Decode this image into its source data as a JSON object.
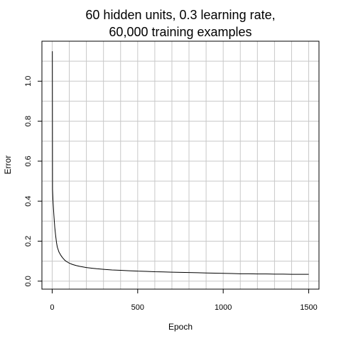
{
  "chart_data": {
    "type": "line",
    "title_lines": [
      "60 hidden units, 0.3 learning rate,",
      "60,000 training examples"
    ],
    "xlabel": "Epoch",
    "ylabel": "Error",
    "xlim": [
      -60,
      1560
    ],
    "ylim": [
      -0.04,
      1.2
    ],
    "xticks": [
      0,
      500,
      1000,
      1500
    ],
    "yticks": [
      0.0,
      0.2,
      0.4,
      0.6,
      0.8,
      1.0
    ],
    "xtick_labels": [
      "0",
      "500",
      "1000",
      "1500"
    ],
    "ytick_labels": [
      "0.0",
      "0.2",
      "0.4",
      "0.6",
      "0.8",
      "1.0"
    ],
    "xgrid": [
      0,
      100,
      200,
      300,
      400,
      500,
      600,
      700,
      800,
      900,
      1000,
      1100,
      1200,
      1300,
      1400,
      1500
    ],
    "ygrid": [
      0.0,
      0.1,
      0.2,
      0.3,
      0.4,
      0.5,
      0.6,
      0.7,
      0.8,
      0.9,
      1.0,
      1.1
    ],
    "grid": true,
    "grid_color": "#c8c8c8",
    "line_color": "#000000",
    "series": [
      {
        "x": [
          1,
          2,
          5,
          10,
          15,
          20,
          25,
          30,
          40,
          50,
          60,
          70,
          80,
          90,
          100,
          120,
          140,
          160,
          180,
          200,
          230,
          260,
          300,
          350,
          400,
          450,
          500,
          550,
          600,
          650,
          700,
          750,
          800,
          850,
          900,
          950,
          1000,
          1050,
          1100,
          1150,
          1200,
          1250,
          1300,
          1350,
          1400,
          1450,
          1500
        ],
        "y": [
          1.15,
          0.46,
          0.4,
          0.33,
          0.27,
          0.23,
          0.195,
          0.17,
          0.145,
          0.13,
          0.118,
          0.108,
          0.1,
          0.095,
          0.09,
          0.083,
          0.078,
          0.074,
          0.071,
          0.068,
          0.065,
          0.062,
          0.059,
          0.056,
          0.054,
          0.052,
          0.05,
          0.049,
          0.047,
          0.046,
          0.045,
          0.044,
          0.043,
          0.042,
          0.041,
          0.04,
          0.039,
          0.038,
          0.037,
          0.037,
          0.036,
          0.036,
          0.035,
          0.035,
          0.034,
          0.034,
          0.034
        ]
      }
    ]
  }
}
